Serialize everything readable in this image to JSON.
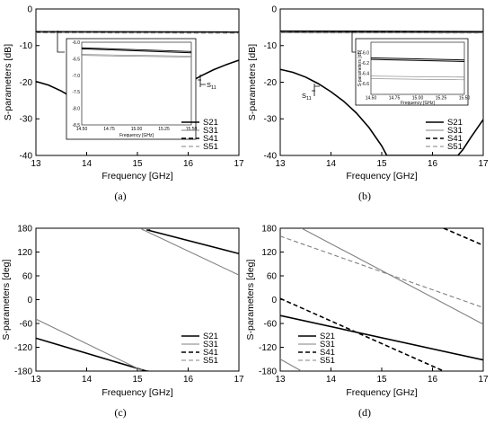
{
  "figure": {
    "panels": [
      {
        "caption": "(a)",
        "xlabel": "Frequency [GHz]",
        "ylabel": "S-parameters [dB]",
        "xlim": [
          13,
          17
        ],
        "ylim": [
          -40,
          0
        ],
        "xticks": [
          "13",
          "14",
          "15",
          "16",
          "17"
        ],
        "yticks": [
          "0",
          "-10",
          "-20",
          "-30",
          "-40"
        ],
        "legend": [
          "S21",
          "S31",
          "S41",
          "S51"
        ],
        "annotation": "S",
        "annotation_sub": "11",
        "inset": {
          "xlabel": "Frequency [GHz]",
          "xlim": [
            14.5,
            15.5
          ],
          "ylim": [
            -8.5,
            -6.0
          ],
          "xticks": [
            "14.50",
            "14.75",
            "15.00",
            "15.25",
            "15.50"
          ],
          "yticks": [
            "-6.0",
            "-6.5",
            "-7.0",
            "-7.5",
            "-8.0",
            "-8.5"
          ]
        }
      },
      {
        "caption": "(b)",
        "xlabel": "Frequency [GHz]",
        "ylabel": "S-parameters [dB]",
        "xlim": [
          13,
          17
        ],
        "ylim": [
          -40,
          0
        ],
        "xticks": [
          "13",
          "14",
          "15",
          "16",
          "17"
        ],
        "yticks": [
          "0",
          "-10",
          "-20",
          "-30",
          "-40"
        ],
        "legend": [
          "S21",
          "S31",
          "S41",
          "S51"
        ],
        "annotation": "S",
        "annotation_sub": "11",
        "inset": {
          "xlabel": "Frequency [GHz]",
          "ylabel": "S-parameters [dB]",
          "xlim": [
            14.5,
            15.5
          ],
          "ylim": [
            -6.8,
            -5.8
          ],
          "xticks": [
            "14.50",
            "14.75",
            "15.00",
            "15.25",
            "15.50"
          ],
          "yticks": [
            "-6.0",
            "-6.2",
            "-6.4",
            "-6.6"
          ]
        }
      },
      {
        "caption": "(c)",
        "xlabel": "Frequency [GHz]",
        "ylabel": "S-parameters [deg]",
        "xlim": [
          13,
          17
        ],
        "ylim": [
          -180,
          180
        ],
        "xticks": [
          "13",
          "14",
          "15",
          "16",
          "17"
        ],
        "yticks": [
          "180",
          "120",
          "60",
          "0",
          "-60",
          "-120",
          "-180"
        ],
        "legend": [
          "S21",
          "S31",
          "S41",
          "S51"
        ]
      },
      {
        "caption": "(d)",
        "xlabel": "Frequency [GHz]",
        "ylabel": "S-parameters [deg]",
        "xlim": [
          13,
          17
        ],
        "ylim": [
          -180,
          180
        ],
        "xticks": [
          "13",
          "14",
          "15",
          "16",
          "17"
        ],
        "yticks": [
          "180",
          "120",
          "60",
          "0",
          "-60",
          "-120",
          "-180"
        ],
        "legend": [
          "S21",
          "S31",
          "S41",
          "S51"
        ]
      }
    ]
  },
  "colors": {
    "S21": "#000000",
    "S31": "#808080",
    "S41": "#000000",
    "S51": "#808080",
    "S11": "#000000"
  },
  "chart_data": [
    {
      "type": "line",
      "title": "",
      "xlabel": "Frequency [GHz]",
      "ylabel": "S-parameters [dB]",
      "xlim": [
        13,
        17
      ],
      "ylim": [
        -40,
        0
      ],
      "grid": false,
      "legend_position": "bottom-right",
      "series": [
        {
          "name": "S21",
          "style": "solid",
          "x": [
            13,
            17
          ],
          "y": [
            -6.2,
            -6.3
          ]
        },
        {
          "name": "S31",
          "style": "solid",
          "x": [
            13,
            17
          ],
          "y": [
            -6.4,
            -6.5
          ]
        },
        {
          "name": "S41",
          "style": "dashed",
          "x": [
            13,
            17
          ],
          "y": [
            -6.3,
            -6.45
          ]
        },
        {
          "name": "S51",
          "style": "dashed",
          "x": [
            13,
            17
          ],
          "y": [
            -6.5,
            -6.6
          ]
        },
        {
          "name": "S11",
          "style": "solid",
          "x": [
            13.0,
            13.25,
            13.5,
            13.75,
            14.0,
            14.25,
            14.5,
            14.6,
            14.75,
            15.0,
            15.25,
            15.5,
            15.75,
            16.0,
            16.25,
            16.5,
            16.75,
            17.0
          ],
          "y": [
            -19.8,
            -20.8,
            -22.4,
            -24.4,
            -26.6,
            -28.5,
            -29.8,
            -30.0,
            -29.8,
            -28.6,
            -26.8,
            -24.6,
            -22.3,
            -20.2,
            -18.3,
            -16.6,
            -15.2,
            -14.0
          ]
        }
      ],
      "inset": {
        "xlim": [
          14.5,
          15.5
        ],
        "ylim": [
          -8.5,
          -6.0
        ],
        "series": [
          {
            "name": "S21",
            "x": [
              14.5,
              15.5
            ],
            "y": [
              -6.17,
              -6.28
            ]
          },
          {
            "name": "S31",
            "x": [
              14.5,
              15.5
            ],
            "y": [
              -6.37,
              -6.42
            ]
          },
          {
            "name": "S41",
            "x": [
              14.5,
              15.5
            ],
            "y": [
              -6.2,
              -6.32
            ]
          },
          {
            "name": "S51",
            "x": [
              14.5,
              15.5
            ],
            "y": [
              -6.4,
              -6.45
            ]
          }
        ]
      }
    },
    {
      "type": "line",
      "title": "",
      "xlabel": "Frequency [GHz]",
      "ylabel": "S-parameters [dB]",
      "xlim": [
        13,
        17
      ],
      "ylim": [
        -40,
        0
      ],
      "grid": false,
      "legend_position": "bottom-right",
      "series": [
        {
          "name": "S21",
          "style": "solid",
          "x": [
            13,
            17
          ],
          "y": [
            -6.05,
            -6.2
          ]
        },
        {
          "name": "S31",
          "style": "solid",
          "x": [
            13,
            17
          ],
          "y": [
            -6.45,
            -6.5
          ]
        },
        {
          "name": "S41",
          "style": "dashed",
          "x": [
            13,
            17
          ],
          "y": [
            -6.1,
            -6.25
          ]
        },
        {
          "name": "S51",
          "style": "dashed",
          "x": [
            13,
            17
          ],
          "y": [
            -6.5,
            -6.55
          ]
        },
        {
          "name": "S11",
          "style": "solid",
          "x": [
            13.0,
            13.25,
            13.5,
            13.75,
            14.0,
            14.25,
            14.5,
            14.75,
            15.0,
            15.1,
            16.5,
            16.6,
            16.75,
            16.9,
            17.0
          ],
          "y": [
            -16.5,
            -17.3,
            -18.6,
            -20.4,
            -22.6,
            -25.2,
            -28.4,
            -32.4,
            -37.4,
            -40,
            -40,
            -38.4,
            -35.2,
            -32.2,
            -30.2
          ]
        }
      ],
      "inset": {
        "xlim": [
          14.5,
          15.5
        ],
        "ylim": [
          -6.8,
          -5.8
        ],
        "series": [
          {
            "name": "S21",
            "x": [
              14.5,
              15.5
            ],
            "y": [
              -6.1,
              -6.14
            ]
          },
          {
            "name": "S31",
            "x": [
              14.5,
              15.5
            ],
            "y": [
              -6.45,
              -6.47
            ]
          },
          {
            "name": "S41",
            "x": [
              14.5,
              15.5
            ],
            "y": [
              -6.13,
              -6.17
            ]
          },
          {
            "name": "S51",
            "x": [
              14.5,
              15.5
            ],
            "y": [
              -6.5,
              -6.52
            ]
          }
        ]
      }
    },
    {
      "type": "line",
      "title": "",
      "xlabel": "Frequency [GHz]",
      "ylabel": "S-parameters [deg]",
      "xlim": [
        13,
        17
      ],
      "ylim": [
        -180,
        180
      ],
      "grid": false,
      "legend_position": "bottom-right",
      "series": [
        {
          "name": "S21",
          "style": "solid",
          "x": [
            13,
            15.18,
            15.18,
            17
          ],
          "y": [
            -97,
            -180,
            176,
            116
          ]
        },
        {
          "name": "S31",
          "style": "solid",
          "x": [
            13,
            15.08,
            15.08,
            17
          ],
          "y": [
            -49,
            -178,
            178,
            62
          ]
        },
        {
          "name": "S41",
          "style": "dashed",
          "x": [
            15.18,
            15.22,
            15.22,
            15.25
          ],
          "y": [
            -180,
            -180,
            176,
            175
          ]
        },
        {
          "name": "S51",
          "style": "dashed",
          "x": [
            15.05,
            15.1,
            15.1,
            15.13
          ],
          "y": [
            -176,
            -176,
            176,
            175
          ]
        }
      ]
    },
    {
      "type": "line",
      "title": "",
      "xlabel": "Frequency [GHz]",
      "ylabel": "S-parameters [deg]",
      "xlim": [
        13,
        17
      ],
      "ylim": [
        -180,
        180
      ],
      "grid": false,
      "legend_position": "bottom-left",
      "series": [
        {
          "name": "S21",
          "style": "solid",
          "x": [
            13,
            17
          ],
          "y": [
            -40,
            -152
          ]
        },
        {
          "name": "S31",
          "style": "solid",
          "x": [
            13,
            13.42,
            13.42,
            17
          ],
          "y": [
            -150,
            -180,
            180,
            -62
          ]
        },
        {
          "name": "S41",
          "style": "dashed",
          "x": [
            13,
            16.22,
            16.22,
            17
          ],
          "y": [
            3,
            -180,
            180,
            137
          ]
        },
        {
          "name": "S51",
          "style": "dashed",
          "x": [
            13,
            17
          ],
          "y": [
            160,
            -20
          ]
        }
      ]
    }
  ]
}
